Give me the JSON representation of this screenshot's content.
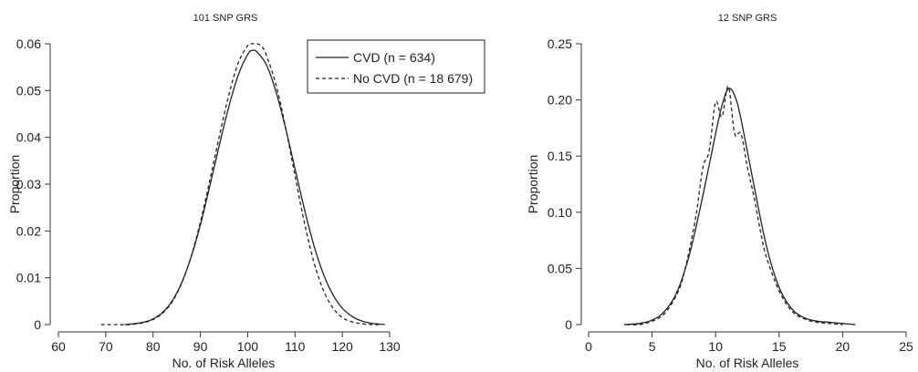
{
  "chart_data": [
    {
      "type": "line",
      "title": "101 SNP GRS",
      "xlabel": "No. of Risk Alleles",
      "ylabel": "Proportion",
      "xlim": [
        60,
        130
      ],
      "ylim": [
        0,
        0.06
      ],
      "x_ticks": [
        60,
        70,
        80,
        90,
        100,
        110,
        120,
        130
      ],
      "y_ticks": [
        0,
        0.01,
        0.02,
        0.03,
        0.04,
        0.05,
        0.06
      ],
      "x_tick_labels": [
        "60",
        "70",
        "80",
        "90",
        "100",
        "110",
        "120",
        "130"
      ],
      "y_tick_labels": [
        "0",
        "0.01",
        "0.02",
        "0.03",
        "0.04",
        "0.05",
        "0.06"
      ],
      "grid": false,
      "legend_position": "top-right",
      "series": [
        {
          "name": "CVD (n = 634)",
          "style": "solid",
          "x": [
            74,
            76,
            78,
            80,
            82,
            84,
            86,
            88,
            90,
            92,
            94,
            96,
            98,
            100,
            101,
            102,
            104,
            106,
            108,
            110,
            112,
            114,
            116,
            118,
            120,
            122,
            124,
            126,
            128,
            129
          ],
          "y": [
            0.0,
            0.0002,
            0.0005,
            0.0012,
            0.0026,
            0.005,
            0.0088,
            0.0143,
            0.0213,
            0.0296,
            0.0383,
            0.0465,
            0.0533,
            0.0577,
            0.0586,
            0.0582,
            0.0554,
            0.0497,
            0.042,
            0.0333,
            0.0246,
            0.0169,
            0.0108,
            0.0064,
            0.0035,
            0.0018,
            0.0008,
            0.0003,
            0.0001,
            0.0
          ]
        },
        {
          "name": "No CVD (n = 18 679)",
          "style": "dashed",
          "x": [
            69,
            72,
            75,
            78,
            80,
            82,
            84,
            86,
            88,
            90,
            92,
            94,
            96,
            98,
            100,
            101,
            102,
            103,
            104,
            106,
            108,
            110,
            112,
            114,
            116,
            118,
            120,
            122,
            124,
            126,
            128
          ],
          "y": [
            0.0,
            0.0,
            0.0,
            0.0004,
            0.0011,
            0.0024,
            0.0048,
            0.0087,
            0.0144,
            0.0219,
            0.0308,
            0.0402,
            0.049,
            0.0559,
            0.0596,
            0.06,
            0.06,
            0.0594,
            0.0574,
            0.0512,
            0.0422,
            0.0318,
            0.0217,
            0.0133,
            0.0073,
            0.0036,
            0.0015,
            0.0006,
            0.0002,
            0.0,
            0.0
          ]
        }
      ]
    },
    {
      "type": "line",
      "title": "12 SNP GRS",
      "xlabel": "No. of Risk Alleles",
      "ylabel": "Proportion",
      "xlim": [
        0,
        25
      ],
      "ylim": [
        0,
        0.25
      ],
      "x_ticks": [
        0,
        5,
        10,
        15,
        20,
        25
      ],
      "y_ticks": [
        0,
        0.05,
        0.1,
        0.15,
        0.2,
        0.25
      ],
      "x_tick_labels": [
        "0",
        "5",
        "10",
        "15",
        "20",
        "25"
      ],
      "y_tick_labels": [
        "0",
        "0.05",
        "0.10",
        "0.15",
        "0.20",
        "0.25"
      ],
      "grid": false,
      "series": [
        {
          "name": "CVD (n = 634)",
          "style": "solid",
          "x": [
            2.8,
            4,
            5,
            6,
            7,
            8,
            9,
            10,
            10.5,
            11,
            11.5,
            12,
            13,
            14,
            15,
            16,
            17,
            18,
            19,
            20,
            21
          ],
          "y": [
            0.0,
            0.001,
            0.004,
            0.012,
            0.03,
            0.065,
            0.115,
            0.17,
            0.195,
            0.21,
            0.204,
            0.183,
            0.125,
            0.07,
            0.033,
            0.014,
            0.006,
            0.003,
            0.002,
            0.001,
            0.0
          ]
        },
        {
          "name": "No CVD (n = 18 679)",
          "style": "dashed",
          "x": [
            3,
            4,
            5,
            6,
            7,
            7.5,
            8,
            8.5,
            9,
            9.5,
            10,
            10.5,
            11,
            11.5,
            12,
            12.5,
            13,
            13.5,
            14,
            15,
            16,
            17,
            18,
            19,
            20
          ],
          "y": [
            0.0,
            0.0,
            0.003,
            0.01,
            0.028,
            0.045,
            0.07,
            0.1,
            0.14,
            0.155,
            0.198,
            0.185,
            0.212,
            0.17,
            0.17,
            0.14,
            0.115,
            0.085,
            0.06,
            0.03,
            0.012,
            0.005,
            0.002,
            0.001,
            0.0
          ]
        }
      ]
    }
  ]
}
